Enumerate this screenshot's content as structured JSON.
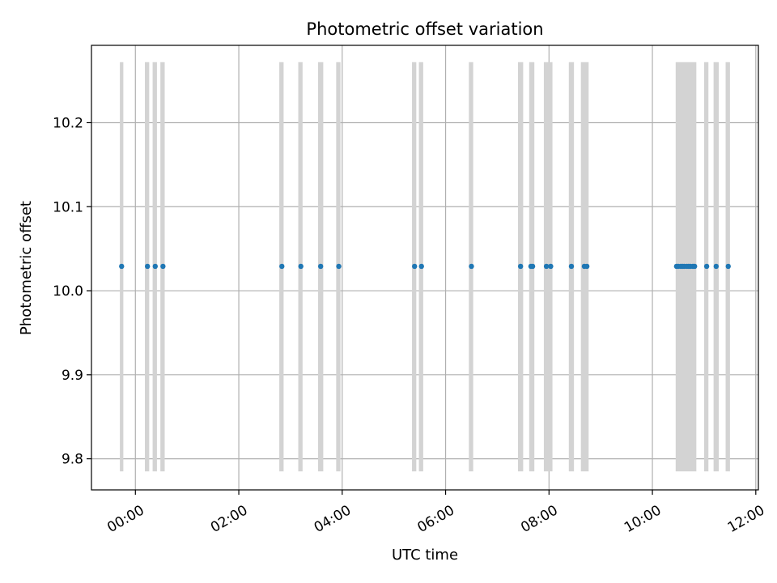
{
  "chart_data": {
    "type": "scatter",
    "title": "Photometric offset variation",
    "xlabel": "UTC time",
    "ylabel": "Photometric offset",
    "x_unit": "UTC time (HH:MM)",
    "xlim": [
      "-00:51",
      "12:03"
    ],
    "ylim": [
      9.763,
      10.292
    ],
    "grid": true,
    "x_ticks": [
      "00:00",
      "02:00",
      "04:00",
      "06:00",
      "08:00",
      "10:00",
      "12:00"
    ],
    "y_ticks": [
      9.8,
      9.9,
      10.0,
      10.1,
      10.2
    ],
    "y_tick_labels": [
      "9.8",
      "9.9",
      "10.0",
      "10.1",
      "10.2"
    ],
    "exposure_span_range": [
      9.785,
      10.272
    ],
    "exposure_span_color": "#d3d3d3",
    "point_color": "#1f77b4",
    "exposures": [
      {
        "start": "-00:18",
        "end": "-00:14",
        "value": 10.029
      },
      {
        "start": "00:11",
        "end": "00:16",
        "value": 10.029
      },
      {
        "start": "00:20",
        "end": "00:25",
        "value": 10.029
      },
      {
        "start": "00:29",
        "end": "00:34",
        "value": 10.029
      },
      {
        "start": "02:47",
        "end": "02:52",
        "value": 10.029
      },
      {
        "start": "03:09",
        "end": "03:14",
        "value": 10.029
      },
      {
        "start": "03:32",
        "end": "03:38",
        "value": 10.029
      },
      {
        "start": "03:53",
        "end": "03:58",
        "value": 10.029
      },
      {
        "start": "05:21",
        "end": "05:26",
        "value": 10.029
      },
      {
        "start": "05:29",
        "end": "05:34",
        "value": 10.029
      },
      {
        "start": "06:27",
        "end": "06:32",
        "value": 10.029
      },
      {
        "start": "07:24",
        "end": "07:30",
        "value": 10.029
      },
      {
        "start": "07:37",
        "end": "07:43",
        "value": 10.029
      },
      {
        "start": "07:54",
        "end": "08:04",
        "value": 10.029
      },
      {
        "start": "08:23",
        "end": "08:29",
        "value": 10.029
      },
      {
        "start": "08:37",
        "end": "08:46",
        "value": 10.029
      },
      {
        "start": "10:27",
        "end": "10:51",
        "value": 10.029
      },
      {
        "start": "11:00",
        "end": "11:05",
        "value": 10.029
      },
      {
        "start": "11:11",
        "end": "11:17",
        "value": 10.029
      },
      {
        "start": "11:25",
        "end": "11:30",
        "value": 10.029
      }
    ],
    "points_x": [
      "-00:16",
      "00:14",
      "00:23",
      "00:32",
      "02:50",
      "03:12",
      "03:35",
      "03:56",
      "05:24",
      "05:32",
      "06:30",
      "07:27",
      "07:39",
      "07:41",
      "07:57",
      "08:02",
      "08:26",
      "08:41",
      "08:44",
      "10:28",
      "10:30",
      "10:33",
      "10:35",
      "10:37",
      "10:40",
      "10:42",
      "10:44",
      "10:47",
      "10:49",
      "11:03",
      "11:14",
      "11:28"
    ],
    "points_y": 10.029
  }
}
